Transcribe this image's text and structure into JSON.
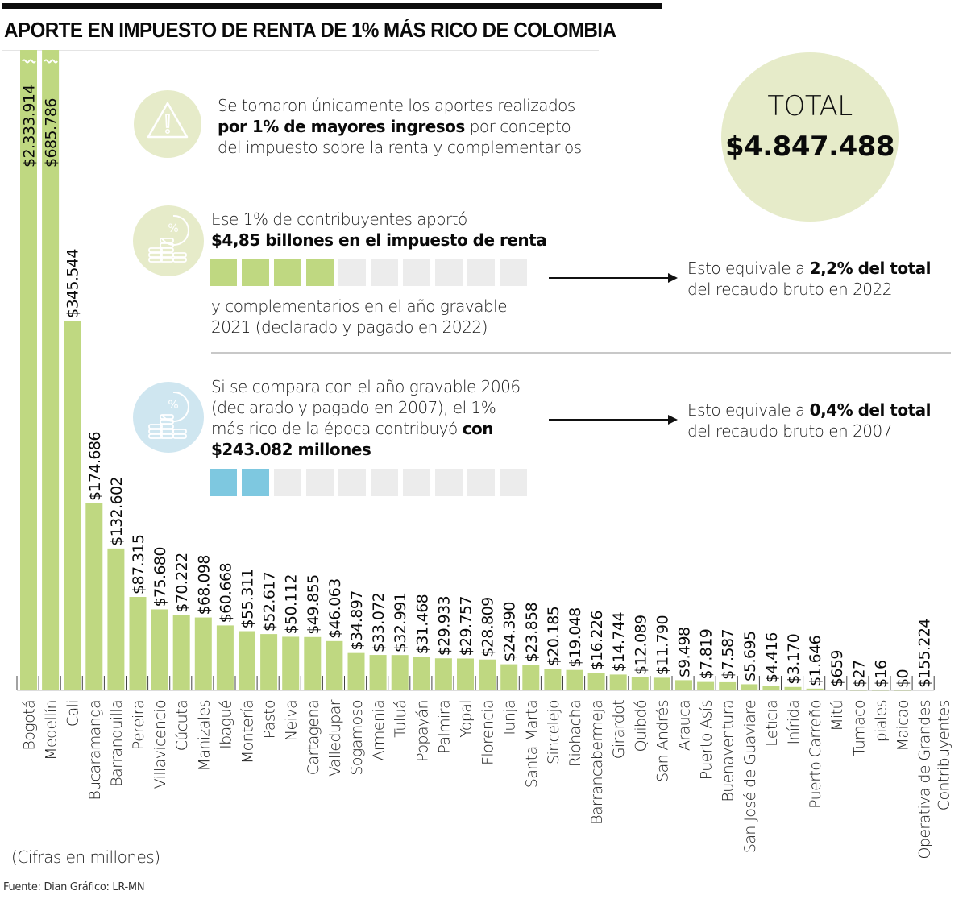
{
  "header": {
    "title": "APORTE EN IMPUESTO DE RENTA DE 1% MÁS RICO DE COLOMBIA"
  },
  "colors": {
    "bar": "#bfd881",
    "accent_green_light": "#e6ebc9",
    "accent_blue": "#7ec8e0",
    "accent_blue_light": "#cfe6f0",
    "empty_square": "#ececec"
  },
  "notes": {
    "note1": {
      "icon": "warning-icon",
      "line1": "Se tomaron únicamente los aportes realizados",
      "line2_bold": "por 1% de mayores ingresos",
      "line2_rest": " por concepto",
      "line3": "del impuesto sobre la renta y complementarios"
    },
    "note2": {
      "icon": "coins-percent-icon",
      "line1": "Ese 1% de contribuyentes aportó",
      "line2_bold": "$4,85 billones en el impuesto de renta",
      "line3": "y complementarios en el año gravable",
      "line4": "2021 (declarado y pagado en 2022)",
      "squares_total": 10,
      "squares_filled": 4,
      "equiv_prefix": "Esto equivale a ",
      "equiv_bold": "2,2% del total",
      "equiv_line2": "del recaudo bruto en 2022"
    },
    "note3": {
      "icon": "coins-percent-icon",
      "line1": "Si se compara con el año gravable 2006",
      "line2": "(declarado y pagado en 2007), el 1%",
      "line3": "más rico de la época contribuyó ",
      "line3_bold": "con",
      "line4_bold": "$243.082 millones",
      "squares_total": 10,
      "squares_filled": 2,
      "equiv_prefix": "Esto equivale a ",
      "equiv_bold": "0,4% del total",
      "equiv_line2": "del recaudo bruto en 2007"
    }
  },
  "total": {
    "label": "TOTAL",
    "value": "$4.847.488"
  },
  "footer": {
    "units_note": "(Cifras en millones)",
    "source": "Fuente: Dian   Gráfico: LR-MN"
  },
  "chart_data": {
    "type": "bar",
    "title": "APORTE EN IMPUESTO DE RENTA DE 1% MÁS RICO DE COLOMBIA",
    "xlabel": "",
    "ylabel": "",
    "units": "millones de pesos",
    "orientation": "vertical",
    "grid": false,
    "axis_broken_for": [
      "Bogotá",
      "Medellín"
    ],
    "ylim": [
      0,
      345544
    ],
    "categories": [
      "Bogotá",
      "Medellín",
      "Cali",
      "Bucaramanga",
      "Barranquilla",
      "Pereira",
      "Villavicencio",
      "Cúcuta",
      "Manizales",
      "Ibagué",
      "Montería",
      "Pasto",
      "Neiva",
      "Cartagena",
      "Valledupar",
      "Sogamoso",
      "Armenia",
      "Tuluá",
      "Popayán",
      "Palmira",
      "Yopal",
      "Florencia",
      "Tunja",
      "Santa Marta",
      "Sincelejo",
      "Riohacha",
      "Barrancabermeja",
      "Girardot",
      "Quibdó",
      "San Andrés",
      "Arauca",
      "Puerto Asís",
      "Buenaventura",
      "San José de Guaviare",
      "Leticia",
      "Inírida",
      "Puerto Carreño",
      "Mitú",
      "Tumaco",
      "Ipiales",
      "Maicao",
      "Operativa de Grandes Contribuyentes"
    ],
    "values": [
      2333914,
      685786,
      345544,
      174686,
      132602,
      87315,
      75680,
      70222,
      68098,
      60668,
      55311,
      52617,
      50112,
      49855,
      46063,
      34897,
      33072,
      32991,
      31468,
      29933,
      29757,
      28809,
      24390,
      23858,
      20185,
      19048,
      16226,
      14744,
      12089,
      11790,
      9498,
      7819,
      7587,
      5695,
      4416,
      3170,
      1646,
      659,
      27,
      16,
      0,
      155224
    ],
    "labels": [
      "$2.333.914",
      "$685.786",
      "$345.544",
      "$174.686",
      "$132.602",
      "$87.315",
      "$75.680",
      "$70.222",
      "$68.098",
      "$60.668",
      "$55.311",
      "$52.617",
      "$50.112",
      "$49.855",
      "$46.063",
      "$34.897",
      "$33.072",
      "$32.991",
      "$31.468",
      "$29.933",
      "$29.757",
      "$28.809",
      "$24.390",
      "$23.858",
      "$20.185",
      "$19.048",
      "$16.226",
      "$14.744",
      "$12.089",
      "$11.790",
      "$9.498",
      "$7.819",
      "$7.587",
      "$5.695",
      "$4.416",
      "$3.170",
      "$1.646",
      "$659",
      "$27",
      "$16",
      "$0",
      "$155.224"
    ],
    "bar_drawn": [
      true,
      true,
      true,
      true,
      true,
      true,
      true,
      true,
      true,
      true,
      true,
      true,
      true,
      true,
      true,
      true,
      true,
      true,
      true,
      true,
      true,
      true,
      true,
      true,
      true,
      true,
      true,
      true,
      true,
      true,
      true,
      true,
      true,
      true,
      true,
      true,
      true,
      true,
      true,
      true,
      true,
      false
    ]
  }
}
